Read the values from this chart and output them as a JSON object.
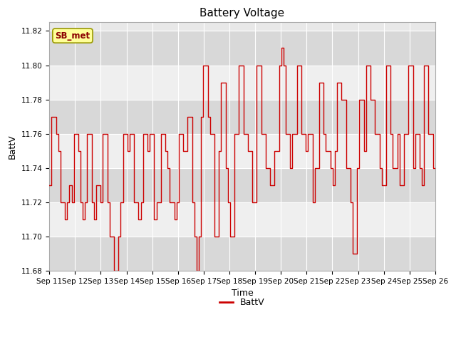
{
  "title": "Battery Voltage",
  "xlabel": "Time",
  "ylabel": "BattV",
  "legend_label": "SB_met",
  "line_label": "BattV",
  "line_color": "#cc0000",
  "ylim": [
    11.68,
    11.825
  ],
  "yticks": [
    11.68,
    11.7,
    11.72,
    11.74,
    11.76,
    11.78,
    11.8,
    11.82
  ],
  "plot_bg": "#e8e8e8",
  "band_color_light": "#efefef",
  "band_color_dark": "#d8d8d8",
  "title_fontsize": 11,
  "axis_label_fontsize": 9,
  "tick_fontsize": 7.5,
  "x_labels": [
    "Sep 11",
    "Sep 12",
    "Sep 13",
    "Sep 14",
    "Sep 15",
    "Sep 16",
    "Sep 17",
    "Sep 18",
    "Sep 19",
    "Sep 20",
    "Sep 21",
    "Sep 22",
    "Sep 23",
    "Sep 24",
    "Sep 25",
    "Sep 26"
  ],
  "num_days": 16,
  "battery_data": [
    11.73,
    11.77,
    11.77,
    11.76,
    11.75,
    11.72,
    11.72,
    11.71,
    11.72,
    11.73,
    11.72,
    11.76,
    11.76,
    11.75,
    11.72,
    11.71,
    11.72,
    11.76,
    11.76,
    11.72,
    11.71,
    11.73,
    11.73,
    11.72,
    11.76,
    11.76,
    11.72,
    11.7,
    11.7,
    11.68,
    11.68,
    11.7,
    11.72,
    11.76,
    11.76,
    11.75,
    11.76,
    11.76,
    11.72,
    11.72,
    11.71,
    11.72,
    11.76,
    11.76,
    11.75,
    11.76,
    11.76,
    11.71,
    11.72,
    11.72,
    11.76,
    11.76,
    11.75,
    11.74,
    11.72,
    11.72,
    11.71,
    11.72,
    11.76,
    11.76,
    11.75,
    11.75,
    11.77,
    11.77,
    11.72,
    11.7,
    11.68,
    11.7,
    11.77,
    11.8,
    11.8,
    11.77,
    11.76,
    11.76,
    11.7,
    11.7,
    11.75,
    11.79,
    11.79,
    11.74,
    11.72,
    11.7,
    11.7,
    11.76,
    11.76,
    11.8,
    11.8,
    11.76,
    11.76,
    11.75,
    11.75,
    11.72,
    11.72,
    11.8,
    11.8,
    11.76,
    11.76,
    11.74,
    11.74,
    11.73,
    11.73,
    11.75,
    11.75,
    11.8,
    11.81,
    11.8,
    11.76,
    11.76,
    11.74,
    11.76,
    11.76,
    11.8,
    11.8,
    11.76,
    11.76,
    11.75,
    11.76,
    11.76,
    11.72,
    11.74,
    11.74,
    11.79,
    11.79,
    11.76,
    11.75,
    11.75,
    11.74,
    11.73,
    11.75,
    11.79,
    11.79,
    11.78,
    11.78,
    11.74,
    11.74,
    11.72,
    11.69,
    11.69,
    11.74,
    11.78,
    11.78,
    11.75,
    11.8,
    11.8,
    11.78,
    11.78,
    11.76,
    11.76,
    11.74,
    11.73,
    11.73,
    11.8,
    11.8,
    11.76,
    11.74,
    11.74,
    11.76,
    11.73,
    11.73,
    11.76,
    11.76,
    11.8,
    11.8,
    11.74,
    11.76,
    11.76,
    11.74,
    11.73,
    11.8,
    11.8,
    11.76,
    11.76,
    11.74,
    11.74
  ]
}
